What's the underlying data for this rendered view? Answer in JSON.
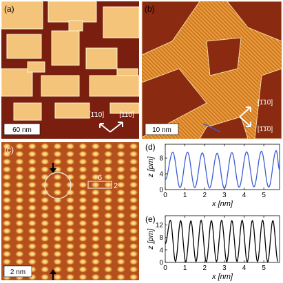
{
  "figure": {
    "panels": {
      "a": {
        "label": "(a)",
        "scalebar": "60 nm",
        "dir1": "[1̄10]",
        "dir2": "[110]"
      },
      "b": {
        "label": "(b)",
        "scalebar": "10 nm",
        "dir1": "[1̄10]",
        "dir2": "[1̄1̄0]"
      },
      "c": {
        "label": "(c)",
        "scalebar": "2 nm",
        "box_w": "6",
        "box_h": "2"
      },
      "d": {
        "label": "(d)"
      },
      "e": {
        "label": "(e)"
      }
    }
  },
  "chart_data": [
    {
      "panel": "d",
      "type": "line",
      "xlabel": "x [nm]",
      "ylabel": "z [pm]",
      "xlim": [
        0,
        5.8
      ],
      "ylim": [
        0,
        11.5
      ],
      "xticks": [
        0,
        1,
        2,
        3,
        4,
        5
      ],
      "yticks": [
        0,
        4,
        8
      ],
      "color": "#3b5bd6",
      "period_nm": 0.75,
      "amplitude_pm": [
        0.3,
        10.0
      ],
      "x": [
        0.0,
        0.38,
        0.75,
        1.13,
        1.5,
        1.88,
        2.25,
        2.63,
        3.0,
        3.38,
        3.75,
        4.13,
        4.5,
        4.88,
        5.25,
        5.63,
        5.8
      ],
      "y": [
        2.5,
        9.5,
        0.5,
        9.5,
        0.5,
        9.3,
        0.4,
        9.2,
        0.3,
        9.4,
        0.6,
        9.6,
        0.7,
        9.7,
        0.6,
        9.9,
        5.0
      ]
    },
    {
      "panel": "e",
      "type": "line",
      "xlabel": "x [nm]",
      "ylabel": "z [pm]",
      "xlim": [
        0,
        5.8
      ],
      "ylim": [
        0,
        15
      ],
      "xticks": [
        0,
        1,
        2,
        3,
        4,
        5
      ],
      "yticks": [
        0,
        4,
        8,
        12
      ],
      "color": "#000000",
      "period_nm": 0.52,
      "amplitude_pm": [
        0.2,
        13.5
      ],
      "x": [
        0.0,
        0.26,
        0.52,
        0.78,
        1.04,
        1.3,
        1.56,
        1.82,
        2.08,
        2.34,
        2.6,
        2.86,
        3.12,
        3.38,
        3.64,
        3.9,
        4.16,
        4.42,
        4.68,
        4.94,
        5.2,
        5.46,
        5.72
      ],
      "y": [
        6,
        13.5,
        0.3,
        13.4,
        0.2,
        13.3,
        0.3,
        13.5,
        0.2,
        13.4,
        0.3,
        13.5,
        0.2,
        13.4,
        0.3,
        13.5,
        0.2,
        13.4,
        0.3,
        13.5,
        0.2,
        13.4,
        0.3
      ]
    }
  ]
}
